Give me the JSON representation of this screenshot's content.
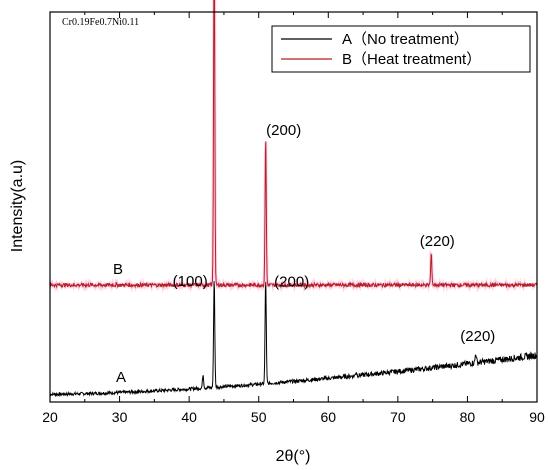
{
  "chart_data": {
    "type": "line",
    "title": "",
    "xlabel": "2θ(°)",
    "ylabel": "Intensity(a.u)",
    "xlim": [
      20,
      90
    ],
    "xticks": [
      20,
      30,
      40,
      50,
      60,
      70,
      80,
      90
    ],
    "grid": false,
    "legend_position": "top-right",
    "sample_label": "Cr0.19Fe0.7Ni0.11",
    "series": [
      {
        "name": "A（No treatment）",
        "tag": "A",
        "color": "#000000",
        "baseline_start": 0.02,
        "baseline_end": 0.12,
        "peaks": [
          {
            "x": 42.0,
            "height": 0.035
          },
          {
            "x": 43.6,
            "height": 0.28
          },
          {
            "x": 51.0,
            "height": 0.27
          },
          {
            "x": 64.0,
            "height": 0.01
          },
          {
            "x": 81.2,
            "height": 0.025
          }
        ],
        "peak_labels": [
          {
            "x": 43.6,
            "text": "(100)"
          },
          {
            "x": 51.0,
            "text": "(200)"
          },
          {
            "x": 81.2,
            "text": "(220)"
          }
        ]
      },
      {
        "name": "B（Heat treatment）",
        "tag": "B",
        "color": "#b22222",
        "baseline_start": 0.3,
        "baseline_end": 0.3,
        "peaks": [
          {
            "x": 43.6,
            "height": 0.92
          },
          {
            "x": 51.0,
            "height": 0.38
          },
          {
            "x": 74.8,
            "height": 0.08
          }
        ],
        "peak_labels": [
          {
            "x": 43.6,
            "text": "(100)"
          },
          {
            "x": 51.0,
            "text": "(200)"
          },
          {
            "x": 74.8,
            "text": "(220)"
          }
        ]
      }
    ]
  }
}
